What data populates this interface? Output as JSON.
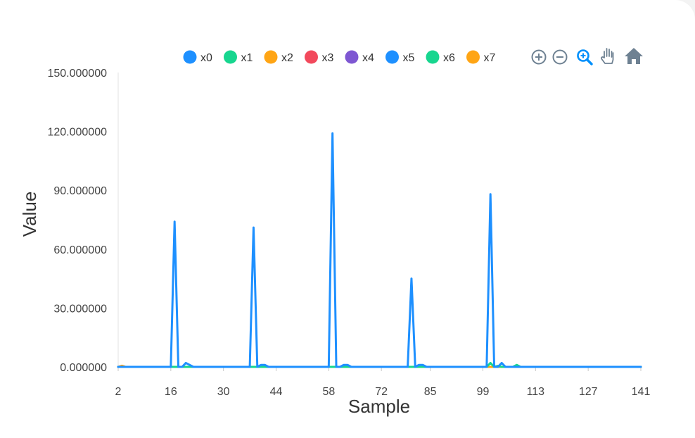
{
  "chart_data": {
    "type": "line",
    "title": "",
    "xlabel": "Sample",
    "ylabel": "Value",
    "xlim": [
      2,
      141
    ],
    "ylim": [
      0,
      150
    ],
    "x_ticks": [
      "2",
      "16",
      "30",
      "44",
      "58",
      "72",
      "85",
      "99",
      "113",
      "127",
      "141"
    ],
    "y_ticks": [
      "0.000000",
      "30.000000",
      "60.000000",
      "90.000000",
      "120.000000",
      "150.000000"
    ],
    "legend_position": "top",
    "grid": false,
    "series": [
      {
        "name": "x0",
        "color": "#1e90ff",
        "points": [
          [
            2,
            0
          ],
          [
            15,
            0
          ],
          [
            16,
            0
          ],
          [
            17,
            74
          ],
          [
            18,
            0
          ],
          [
            19,
            0
          ],
          [
            20,
            2
          ],
          [
            21,
            1
          ],
          [
            22,
            0
          ],
          [
            36,
            0
          ],
          [
            37,
            0
          ],
          [
            38,
            71
          ],
          [
            39,
            0
          ],
          [
            40,
            1
          ],
          [
            41,
            1
          ],
          [
            42,
            0
          ],
          [
            57,
            0
          ],
          [
            58,
            0
          ],
          [
            59,
            119
          ],
          [
            60,
            0
          ],
          [
            61,
            0
          ],
          [
            62,
            1
          ],
          [
            63,
            1
          ],
          [
            64,
            0
          ],
          [
            78,
            0
          ],
          [
            79,
            0
          ],
          [
            80,
            45
          ],
          [
            81,
            0
          ],
          [
            82,
            1
          ],
          [
            83,
            1
          ],
          [
            84,
            0
          ],
          [
            99,
            0
          ],
          [
            100,
            0
          ],
          [
            101,
            88
          ],
          [
            102,
            0
          ],
          [
            103,
            0
          ],
          [
            104,
            2
          ],
          [
            105,
            0
          ],
          [
            141,
            0
          ]
        ]
      },
      {
        "name": "x1",
        "color": "#17d68f",
        "points": [
          [
            2,
            0
          ],
          [
            99,
            0
          ],
          [
            100,
            0
          ],
          [
            101,
            2
          ],
          [
            102,
            0
          ],
          [
            103,
            0.5
          ],
          [
            104,
            0
          ],
          [
            107,
            0
          ],
          [
            108,
            1
          ],
          [
            109,
            0
          ],
          [
            141,
            0
          ]
        ]
      },
      {
        "name": "x2",
        "color": "#ffa515",
        "points": [
          [
            2,
            0
          ],
          [
            3,
            0.6
          ],
          [
            4,
            0
          ],
          [
            141,
            0
          ]
        ]
      },
      {
        "name": "x3",
        "color": "#f2495c",
        "points": [
          [
            2,
            0
          ],
          [
            141,
            0
          ]
        ]
      },
      {
        "name": "x4",
        "color": "#7e57d2",
        "points": [
          [
            2,
            0
          ],
          [
            141,
            0
          ]
        ]
      },
      {
        "name": "x5",
        "color": "#1e90ff",
        "points": [
          [
            2,
            0
          ],
          [
            141,
            0
          ]
        ]
      },
      {
        "name": "x6",
        "color": "#17d68f",
        "points": [
          [
            2,
            0
          ],
          [
            141,
            0
          ]
        ]
      },
      {
        "name": "x7",
        "color": "#ffa515",
        "points": [
          [
            2,
            0
          ],
          [
            141,
            0
          ]
        ]
      }
    ]
  },
  "toolbar": {
    "zoom_in_icon": "zoom-in-icon",
    "zoom_out_icon": "zoom-out-icon",
    "selection_zoom_icon": "magnifier-plus-icon",
    "pan_icon": "hand-icon",
    "reset_icon": "home-icon",
    "icon_color": "#6e8192",
    "active_color": "#008ffb"
  }
}
